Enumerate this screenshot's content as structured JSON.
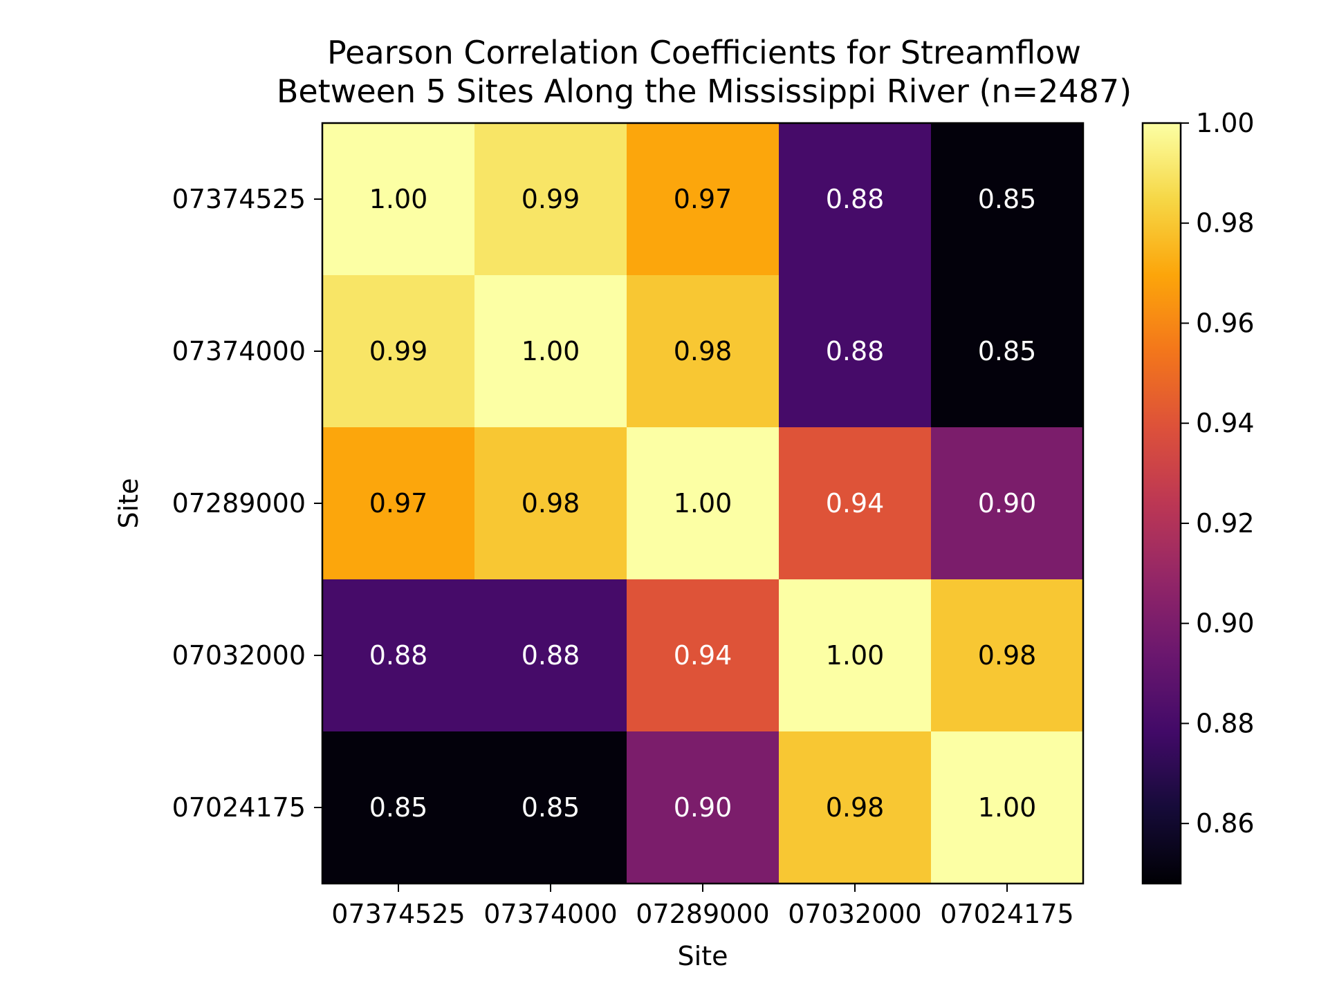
{
  "chart_data": {
    "type": "heatmap",
    "title_lines": [
      "Pearson Correlation Coefficients for Streamflow",
      "Between 5 Sites Along the Mississippi River (n=2487)"
    ],
    "xlabel": "Site",
    "ylabel": "Site",
    "x_categories": [
      "07374525",
      "07374000",
      "07289000",
      "07032000",
      "07024175"
    ],
    "y_categories": [
      "07374525",
      "07374000",
      "07289000",
      "07032000",
      "07024175"
    ],
    "values": [
      [
        1.0,
        0.99,
        0.97,
        0.88,
        0.85
      ],
      [
        0.99,
        1.0,
        0.98,
        0.88,
        0.85
      ],
      [
        0.97,
        0.98,
        1.0,
        0.94,
        0.9
      ],
      [
        0.88,
        0.88,
        0.94,
        1.0,
        0.98
      ],
      [
        0.85,
        0.85,
        0.9,
        0.98,
        1.0
      ]
    ],
    "cell_labels": [
      [
        "1.00",
        "0.99",
        "0.97",
        "0.88",
        "0.85"
      ],
      [
        "0.99",
        "1.00",
        "0.98",
        "0.88",
        "0.85"
      ],
      [
        "0.97",
        "0.98",
        "1.00",
        "0.94",
        "0.90"
      ],
      [
        "0.88",
        "0.88",
        "0.94",
        "1.00",
        "0.98"
      ],
      [
        "0.85",
        "0.85",
        "0.90",
        "0.98",
        "1.00"
      ]
    ],
    "colormap": "inferno",
    "color_range": [
      0.848,
      1.0
    ],
    "colorbar": {
      "ticks": [
        0.86,
        0.88,
        0.9,
        0.92,
        0.94,
        0.96,
        0.98,
        1.0
      ],
      "tick_labels": [
        "0.86",
        "0.88",
        "0.90",
        "0.92",
        "0.94",
        "0.96",
        "0.98",
        "1.00"
      ]
    },
    "annotation_colors": {
      "light": "#ffffff",
      "dark": "#000000"
    }
  }
}
